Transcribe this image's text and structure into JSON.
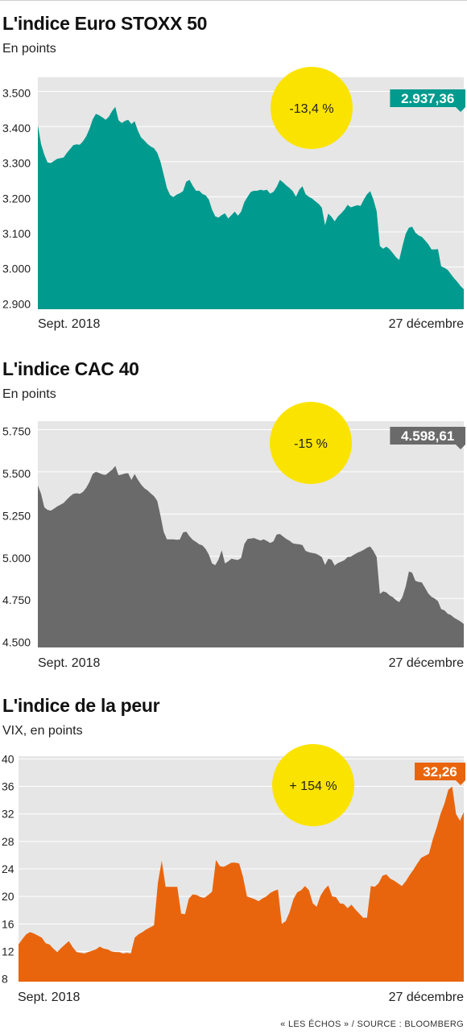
{
  "footer": {
    "source": "« LES ÉCHOS » / SOURCE : BLOOMBERG"
  },
  "chart_data": [
    {
      "type": "area",
      "title": "L'indice Euro STOXX 50",
      "subtitle": "En points",
      "color": "#009a8e",
      "ylim": [
        2880,
        3540
      ],
      "yticks": [
        2900,
        3000,
        3100,
        3200,
        3300,
        3400,
        3500
      ],
      "ytick_labels": [
        "2.900",
        "3.000",
        "3.100",
        "3.200",
        "3.300",
        "3.400",
        "3.500"
      ],
      "x_start_label": "Sept. 2018",
      "x_end_label": "27 décembre",
      "last_value_label": "2.937,36",
      "change_label": "-13,4 %",
      "values": [
        3404,
        3350,
        3320,
        3298,
        3296,
        3302,
        3308,
        3310,
        3312,
        3325,
        3336,
        3347,
        3349,
        3348,
        3358,
        3372,
        3393,
        3420,
        3436,
        3432,
        3426,
        3419,
        3428,
        3444,
        3456,
        3418,
        3410,
        3416,
        3419,
        3407,
        3415,
        3388,
        3369,
        3360,
        3350,
        3343,
        3338,
        3325,
        3300,
        3263,
        3225,
        3205,
        3199,
        3206,
        3210,
        3216,
        3243,
        3248,
        3231,
        3217,
        3217,
        3208,
        3204,
        3192,
        3163,
        3144,
        3141,
        3148,
        3153,
        3138,
        3148,
        3158,
        3146,
        3158,
        3185,
        3200,
        3214,
        3217,
        3217,
        3220,
        3218,
        3220,
        3209,
        3214,
        3228,
        3248,
        3241,
        3232,
        3225,
        3216,
        3200,
        3220,
        3230,
        3207,
        3200,
        3195,
        3187,
        3180,
        3169,
        3119,
        3152,
        3143,
        3130,
        3144,
        3153,
        3163,
        3177,
        3170,
        3173,
        3176,
        3174,
        3192,
        3207,
        3216,
        3192,
        3159,
        3060,
        3052,
        3058,
        3051,
        3040,
        3028,
        3020,
        3060,
        3095,
        3112,
        3115,
        3098,
        3090,
        3086,
        3076,
        3065,
        3050,
        3050,
        3051,
        3002,
        2998,
        2992,
        2980,
        2968,
        2958,
        2946,
        2937
      ]
    },
    {
      "type": "area",
      "title": "L'indice CAC 40",
      "subtitle": "En points",
      "color": "#6b6a6b",
      "ylim": [
        4460,
        5800
      ],
      "yticks": [
        4500,
        4750,
        5000,
        5250,
        5500,
        5750
      ],
      "ytick_labels": [
        "4.500",
        "4.750",
        "5.000",
        "5.250",
        "5.500",
        "5.750"
      ],
      "x_start_label": "Sept. 2018",
      "x_end_label": "27 décembre",
      "last_value_label": "4.598,61",
      "change_label": "-15 %",
      "values": [
        5420,
        5370,
        5290,
        5275,
        5270,
        5281,
        5295,
        5305,
        5316,
        5336,
        5355,
        5370,
        5373,
        5370,
        5382,
        5405,
        5440,
        5487,
        5500,
        5493,
        5485,
        5482,
        5497,
        5512,
        5535,
        5480,
        5484,
        5490,
        5492,
        5452,
        5487,
        5453,
        5425,
        5403,
        5390,
        5372,
        5356,
        5328,
        5241,
        5145,
        5100,
        5100,
        5100,
        5098,
        5099,
        5141,
        5146,
        5118,
        5097,
        5085,
        5071,
        5064,
        5043,
        5010,
        4957,
        4948,
        4981,
        5035,
        4958,
        4970,
        4986,
        4981,
        4978,
        4990,
        5073,
        5103,
        5105,
        5108,
        5100,
        5093,
        5100,
        5091,
        5079,
        5088,
        5129,
        5132,
        5117,
        5103,
        5092,
        5077,
        5073,
        5071,
        5066,
        5032,
        5024,
        5020,
        5017,
        5007,
        4995,
        4949,
        4985,
        4980,
        4945,
        4960,
        4968,
        4977,
        4995,
        4998,
        5010,
        5021,
        5029,
        5038,
        5051,
        5058,
        5031,
        4995,
        4777,
        4792,
        4786,
        4769,
        4758,
        4740,
        4728,
        4760,
        4822,
        4910,
        4902,
        4855,
        4848,
        4845,
        4813,
        4780,
        4760,
        4750,
        4734,
        4687,
        4680,
        4660,
        4652,
        4636,
        4625,
        4614,
        4599
      ]
    },
    {
      "type": "area",
      "title": "L'indice de la peur",
      "subtitle": "VIX, en points",
      "color": "#e9650d",
      "ylim": [
        7.6,
        40.4
      ],
      "yticks": [
        8,
        12,
        16,
        20,
        24,
        28,
        32,
        36,
        40
      ],
      "ytick_labels": [
        "8",
        "12",
        "16",
        "20",
        "24",
        "28",
        "32",
        "36",
        "40"
      ],
      "x_start_label": "Sept. 2018",
      "x_end_label": "27 décembre",
      "last_value_label": "32,26",
      "change_label": "+ 154 %",
      "values": [
        13.0,
        13.8,
        14.5,
        14.8,
        14.6,
        14.3,
        14.0,
        13.2,
        13.0,
        12.4,
        11.9,
        12.5,
        13.0,
        13.5,
        12.6,
        11.9,
        11.8,
        11.7,
        11.9,
        12.1,
        12.3,
        12.7,
        12.4,
        12.3,
        12.0,
        11.9,
        11.9,
        11.7,
        11.8,
        11.7,
        14.0,
        14.5,
        14.8,
        15.2,
        15.5,
        15.8,
        22.0,
        25.2,
        21.4,
        21.4,
        21.4,
        21.4,
        17.5,
        17.4,
        19.7,
        20.3,
        20.2,
        19.9,
        19.8,
        20.2,
        20.7,
        25.3,
        24.4,
        24.3,
        24.6,
        24.9,
        24.9,
        24.8,
        22.8,
        20.0,
        19.8,
        19.6,
        19.3,
        19.7,
        20.0,
        20.5,
        20.8,
        21.0,
        16.0,
        16.4,
        17.7,
        19.6,
        20.6,
        20.9,
        21.5,
        20.9,
        19.0,
        18.5,
        20.1,
        21.0,
        21.6,
        20.0,
        19.9,
        19.0,
        18.9,
        18.3,
        18.8,
        18.1,
        17.5,
        16.9,
        16.9,
        21.5,
        21.4,
        21.9,
        23.0,
        23.2,
        22.6,
        22.3,
        21.9,
        21.5,
        22.2,
        23.1,
        23.9,
        24.8,
        25.6,
        25.9,
        26.2,
        28.3,
        30.0,
        32.0,
        33.5,
        35.5,
        36.0,
        32.0,
        31.0,
        32.26
      ]
    }
  ]
}
